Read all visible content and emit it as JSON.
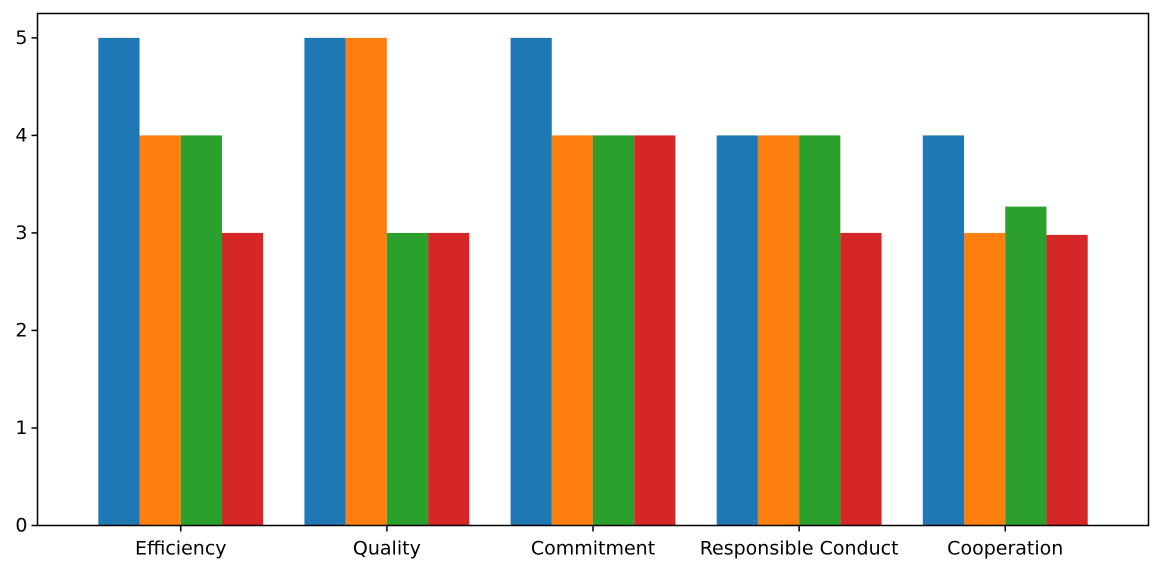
{
  "chart_data": {
    "type": "bar",
    "title": "",
    "xlabel": "",
    "ylabel": "",
    "categories": [
      "Efficiency",
      "Quality",
      "Commitment",
      "Responsible Conduct",
      "Cooperation"
    ],
    "series": [
      {
        "values": [
          5,
          5,
          5,
          4,
          4
        ],
        "color": "#1f77b4"
      },
      {
        "values": [
          4,
          5,
          4,
          4,
          3
        ],
        "color": "#ff7f0e"
      },
      {
        "values": [
          4,
          3,
          4,
          4,
          3.27
        ],
        "color": "#2ca02c"
      },
      {
        "values": [
          3,
          3,
          4,
          3,
          2.98
        ],
        "color": "#d62728"
      }
    ],
    "ylim": [
      0,
      5.25
    ],
    "yticks": [
      0,
      1,
      2,
      3,
      4,
      5
    ],
    "grid": false,
    "legend": false
  }
}
